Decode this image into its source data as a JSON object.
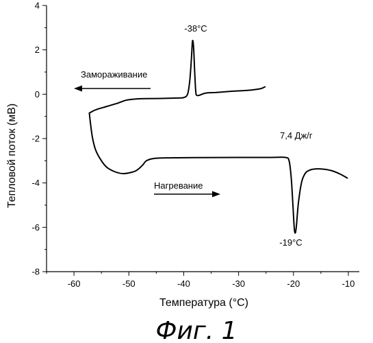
{
  "chart_data": {
    "type": "line",
    "title": "",
    "xlabel": "Температура (°C)",
    "ylabel": "Тепловой поток (мВ)",
    "xlim": [
      -65,
      -8
    ],
    "ylim": [
      -8,
      4
    ],
    "x_ticks": [
      -60,
      -50,
      -40,
      -30,
      -20,
      -10
    ],
    "y_ticks": [
      -8,
      -6,
      -4,
      -2,
      0,
      2,
      4
    ],
    "grid": false,
    "series": [
      {
        "key": "freezing",
        "values": [
          [
            -57.2,
            -0.85
          ],
          [
            -56.0,
            -0.7
          ],
          [
            -54.0,
            -0.55
          ],
          [
            -52.0,
            -0.4
          ],
          [
            -50.5,
            -0.27
          ],
          [
            -49.0,
            -0.22
          ],
          [
            -47.0,
            -0.2
          ],
          [
            -44.0,
            -0.19
          ],
          [
            -41.0,
            -0.17
          ],
          [
            -40.0,
            -0.15
          ],
          [
            -39.3,
            0.0
          ],
          [
            -38.9,
            0.6
          ],
          [
            -38.6,
            1.6
          ],
          [
            -38.4,
            2.4
          ],
          [
            -38.2,
            2.1
          ],
          [
            -38.0,
            1.0
          ],
          [
            -37.8,
            0.1
          ],
          [
            -37.6,
            -0.05
          ],
          [
            -37.2,
            -0.05
          ],
          [
            -36.0,
            0.05
          ],
          [
            -34.0,
            0.08
          ],
          [
            -32.0,
            0.12
          ],
          [
            -30.0,
            0.15
          ],
          [
            -28.0,
            0.18
          ],
          [
            -26.0,
            0.25
          ],
          [
            -25.2,
            0.33
          ]
        ]
      },
      {
        "key": "heating",
        "values": [
          [
            -57.2,
            -0.85
          ],
          [
            -57.0,
            -1.3
          ],
          [
            -56.6,
            -2.0
          ],
          [
            -56.0,
            -2.55
          ],
          [
            -55.0,
            -3.0
          ],
          [
            -54.0,
            -3.3
          ],
          [
            -52.5,
            -3.5
          ],
          [
            -51.0,
            -3.58
          ],
          [
            -49.5,
            -3.52
          ],
          [
            -48.5,
            -3.42
          ],
          [
            -47.5,
            -3.2
          ],
          [
            -46.8,
            -3.0
          ],
          [
            -45.5,
            -2.9
          ],
          [
            -43.0,
            -2.87
          ],
          [
            -38.0,
            -2.86
          ],
          [
            -30.0,
            -2.85
          ],
          [
            -24.0,
            -2.85
          ],
          [
            -21.5,
            -2.85
          ],
          [
            -20.8,
            -3.0
          ],
          [
            -20.4,
            -3.8
          ],
          [
            -20.1,
            -5.0
          ],
          [
            -19.85,
            -6.05
          ],
          [
            -19.65,
            -6.25
          ],
          [
            -19.45,
            -5.9
          ],
          [
            -19.1,
            -4.9
          ],
          [
            -18.5,
            -3.95
          ],
          [
            -17.8,
            -3.55
          ],
          [
            -17.0,
            -3.42
          ],
          [
            -16.0,
            -3.37
          ],
          [
            -14.5,
            -3.38
          ],
          [
            -13.0,
            -3.45
          ],
          [
            -11.5,
            -3.6
          ],
          [
            -10.2,
            -3.78
          ]
        ]
      }
    ],
    "annotations": {
      "peak_freezing": "-38°C",
      "peak_heating": "-19°C",
      "enthalpy": "7,4 Дж/г",
      "freezing_label": "Замораживание",
      "heating_label": "Нагревание"
    }
  },
  "figure_caption": "Фиг. 1"
}
